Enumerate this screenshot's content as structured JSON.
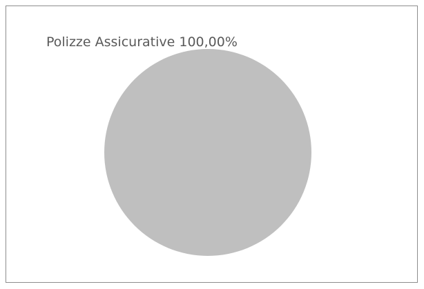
{
  "chart_data": {
    "type": "pie",
    "categories": [
      "Polizze Assicurative"
    ],
    "values": [
      100
    ],
    "slice_labels": [
      "Polizze Assicurative 100,00%"
    ],
    "colors": [
      "#bfbfbf"
    ],
    "label_color": "#595959",
    "border_color": "#8c8c8c",
    "legend": "none"
  }
}
